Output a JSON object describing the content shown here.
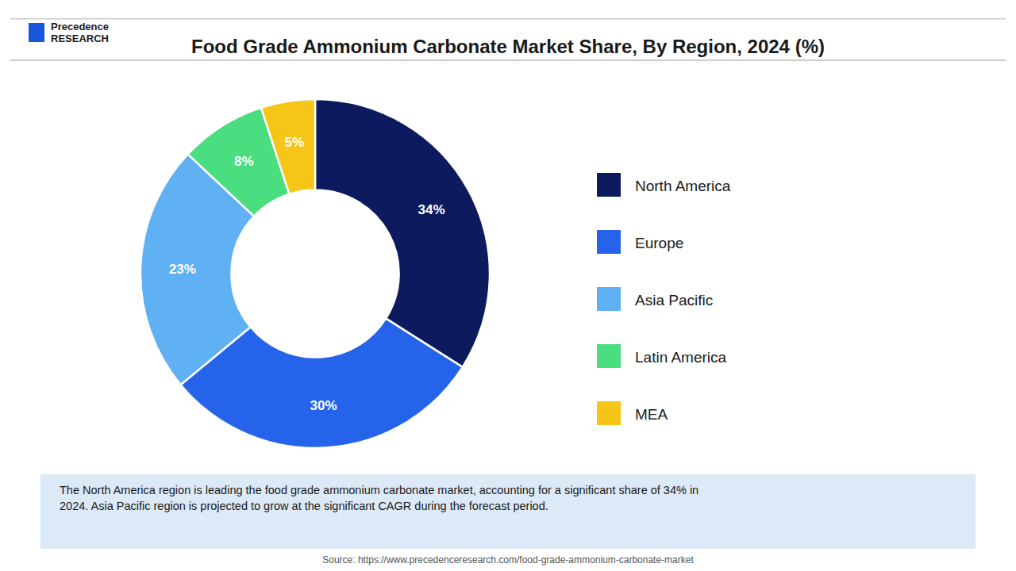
{
  "chart_data": {
    "type": "pie",
    "title": "Food Grade Ammonium Carbonate Market Share, By Region, 2024 (%)",
    "categories": [
      "North America",
      "Europe",
      "Asia Pacific",
      "Latin America",
      "MEA"
    ],
    "values": [
      34,
      30,
      23,
      8,
      5
    ],
    "value_labels": [
      "34%",
      "30%",
      "23%",
      "8%",
      "5%"
    ],
    "colors": [
      "#0d1b5e",
      "#2563eb",
      "#60b0f4",
      "#4ade80",
      "#f5c518"
    ],
    "data_labels": true,
    "legend": "right",
    "annotations": [
      "The North America region is leading the food grade ammonium carbonate market, accounting for a significant share of 34% in\n2024. Asia Pacific region is projected to grow at the significant CAGR during the forecast period.",
      "Source: https://www.precedenceresearch.com/food-grade-ammonium-carbonate-market",
      "Precedence\nRESEARCH"
    ]
  }
}
